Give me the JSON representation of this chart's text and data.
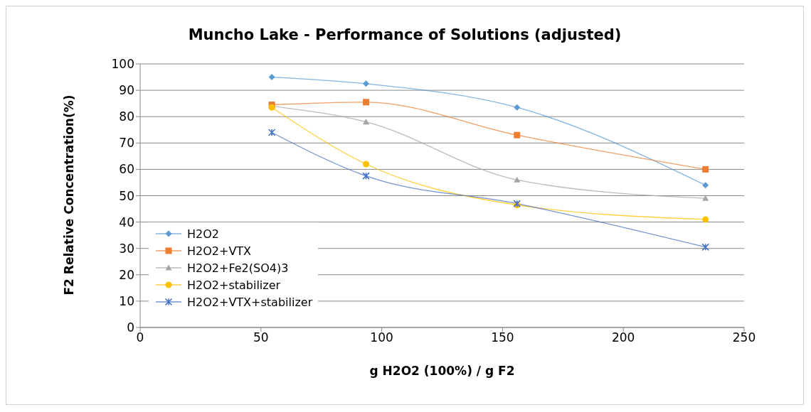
{
  "chart_data": {
    "type": "line",
    "title": "Muncho Lake - Performance of Solutions (adjusted)",
    "xlabel": "g H2O2 (100%) / g F2",
    "ylabel": "F2 Relative Concentration(%)",
    "x": [
      54.5,
      93.5,
      156,
      234
    ],
    "series": [
      {
        "name": "H2O2",
        "color": "#5b9bd5",
        "marker": "diamond",
        "values": [
          95,
          92.5,
          83.5,
          54
        ]
      },
      {
        "name": "H2O2+VTX",
        "color": "#ed7d31",
        "marker": "square",
        "values": [
          84.5,
          85.5,
          73,
          60
        ]
      },
      {
        "name": "H2O2+Fe2(SO4)3",
        "color": "#a5a5a5",
        "marker": "triangle",
        "values": [
          84,
          78,
          56,
          49
        ]
      },
      {
        "name": "H2O2+stabilizer",
        "color": "#ffc000",
        "marker": "circle",
        "values": [
          83.5,
          62,
          46.5,
          41
        ]
      },
      {
        "name": "H2O2+VTX+stabilizer",
        "color": "#4472c4",
        "marker": "cross",
        "values": [
          74,
          57.5,
          47,
          30.5
        ]
      }
    ],
    "xlim": [
      0,
      250
    ],
    "xticks": [
      0,
      50,
      100,
      150,
      200,
      250
    ],
    "ylim": [
      0,
      100
    ],
    "yticks": [
      0,
      10,
      20,
      30,
      40,
      50,
      60,
      70,
      80,
      90,
      100
    ],
    "grid": "y",
    "legend": "bottom left"
  }
}
